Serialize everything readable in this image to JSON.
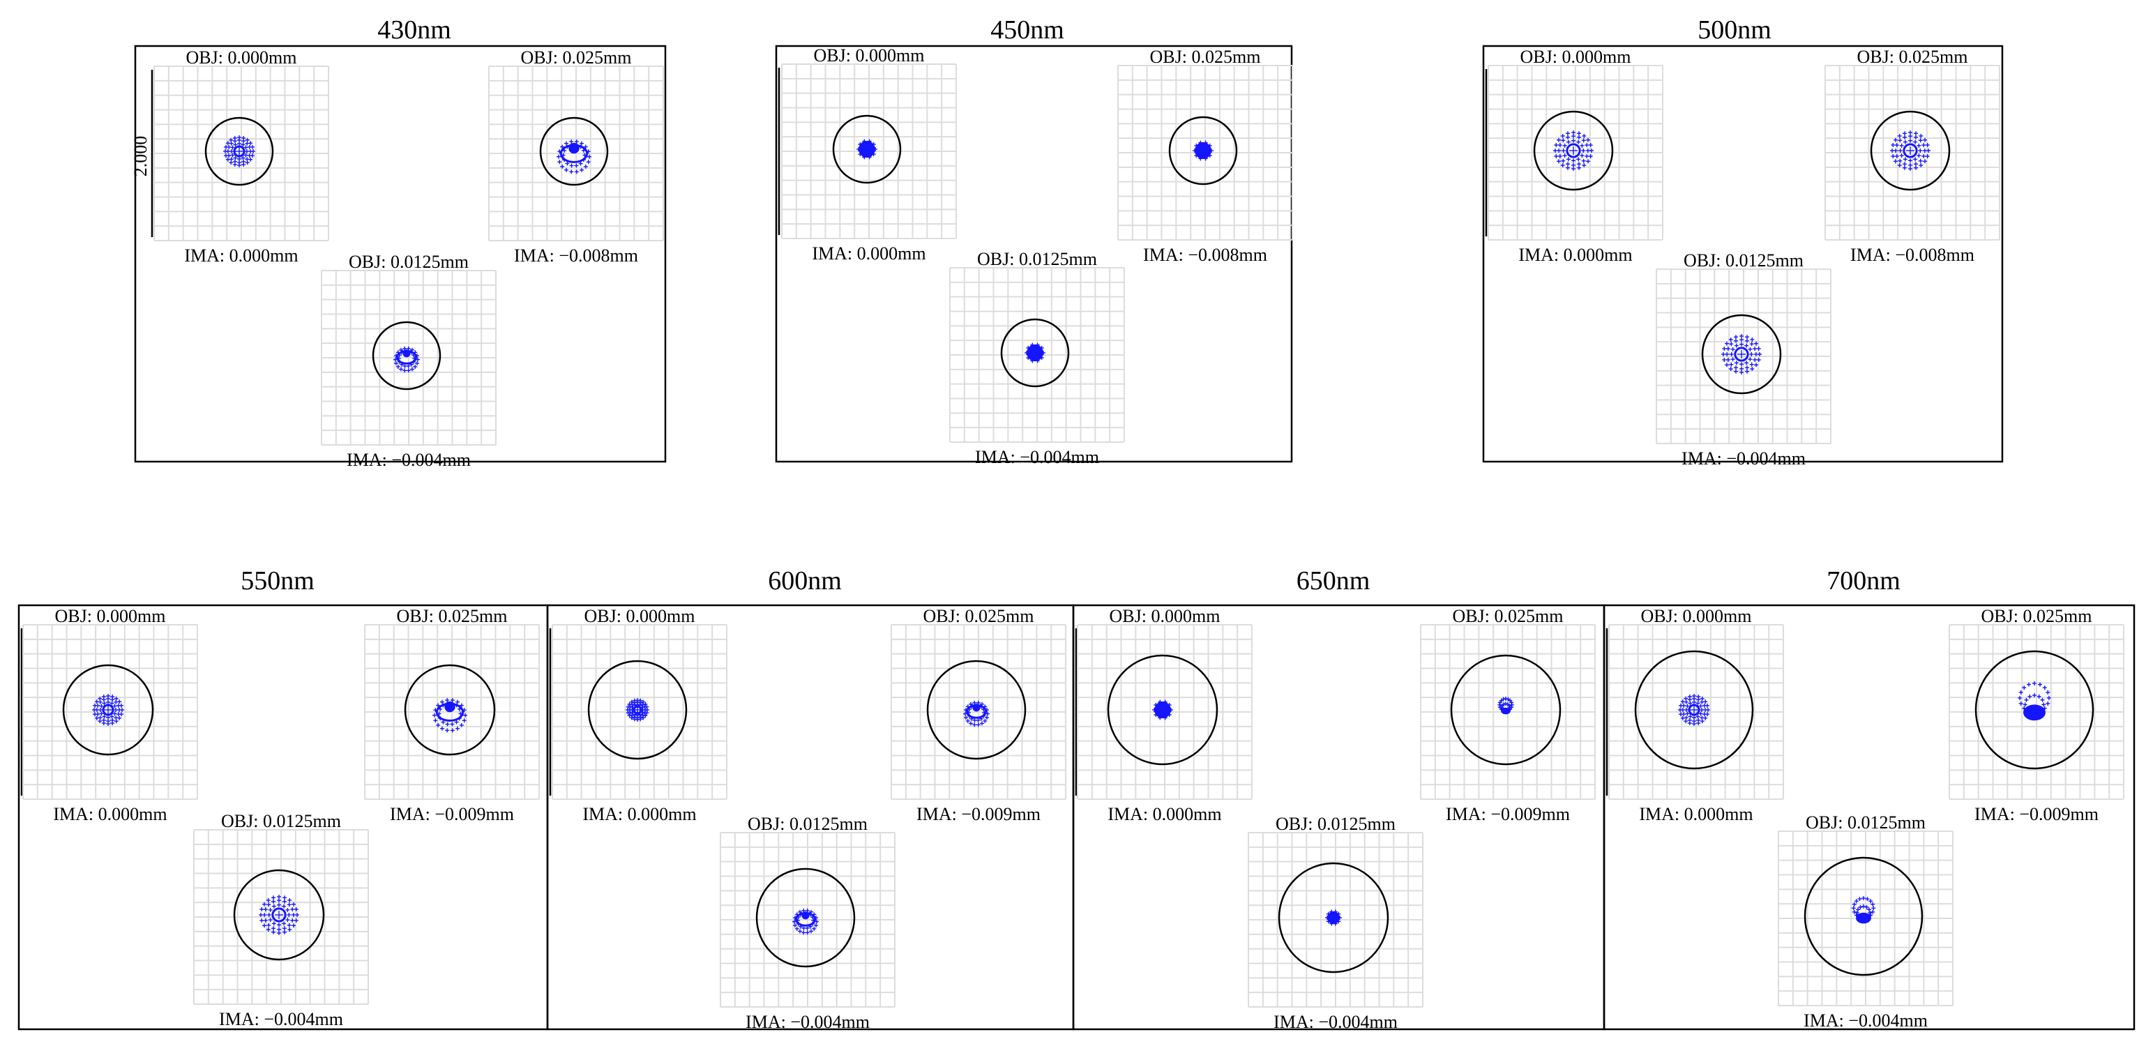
{
  "colors": {
    "spot": "#1515ff",
    "grid": "#dcdcdc",
    "frame": "#000000",
    "airy_circle": "#000000"
  },
  "scale_bar_label": "2.000",
  "panels": [
    {
      "title": "430nm",
      "fields": [
        {
          "obj": "OBJ: 0.000mm",
          "ima": "IMA: 0.000mm",
          "spot": "round-medium"
        },
        {
          "obj": "OBJ: 0.025mm",
          "ima": "IMA: −0.008mm",
          "spot": "coma-down-medium"
        },
        {
          "obj": "OBJ: 0.0125mm",
          "ima": "IMA: −0.004mm",
          "spot": "coma-down-small"
        }
      ]
    },
    {
      "title": "450nm",
      "fields": [
        {
          "obj": "OBJ: 0.000mm",
          "ima": "IMA: 0.000mm",
          "spot": "dot-small"
        },
        {
          "obj": "OBJ: 0.025mm",
          "ima": "IMA: −0.008mm",
          "spot": "dot-small"
        },
        {
          "obj": "OBJ: 0.0125mm",
          "ima": "IMA: −0.004mm",
          "spot": "dot-small"
        }
      ]
    },
    {
      "title": "500nm",
      "fields": [
        {
          "obj": "OBJ: 0.000mm",
          "ima": "IMA: 0.000mm",
          "spot": "round-large"
        },
        {
          "obj": "OBJ: 0.025mm",
          "ima": "IMA: −0.008mm",
          "spot": "round-large"
        },
        {
          "obj": "OBJ: 0.0125mm",
          "ima": "IMA: −0.004mm",
          "spot": "round-large"
        }
      ]
    },
    {
      "title": "550nm",
      "fields": [
        {
          "obj": "OBJ: 0.000mm",
          "ima": "IMA: 0.000mm",
          "spot": "round-medium"
        },
        {
          "obj": "OBJ: 0.025mm",
          "ima": "IMA: −0.009mm",
          "spot": "coma-down-medium"
        },
        {
          "obj": "OBJ: 0.0125mm",
          "ima": "IMA: −0.004mm",
          "spot": "round-large"
        }
      ]
    },
    {
      "title": "600nm",
      "fields": [
        {
          "obj": "OBJ: 0.000mm",
          "ima": "IMA: 0.000mm",
          "spot": "round-small"
        },
        {
          "obj": "OBJ: 0.025mm",
          "ima": "IMA: −0.009mm",
          "spot": "coma-down-small"
        },
        {
          "obj": "OBJ: 0.0125mm",
          "ima": "IMA: −0.004mm",
          "spot": "coma-down-small"
        }
      ]
    },
    {
      "title": "650nm",
      "fields": [
        {
          "obj": "OBJ: 0.000mm",
          "ima": "IMA: 0.000mm",
          "spot": "dot-small"
        },
        {
          "obj": "OBJ: 0.025mm",
          "ima": "IMA: −0.009mm",
          "spot": "coma-up-small"
        },
        {
          "obj": "OBJ: 0.0125mm",
          "ima": "IMA: −0.004mm",
          "spot": "dot-tiny"
        }
      ]
    },
    {
      "title": "700nm",
      "fields": [
        {
          "obj": "OBJ: 0.000mm",
          "ima": "IMA: 0.000mm",
          "spot": "round-medium"
        },
        {
          "obj": "OBJ: 0.025mm",
          "ima": "IMA: −0.009mm",
          "spot": "coma-up-large"
        },
        {
          "obj": "OBJ: 0.0125mm",
          "ima": "IMA: −0.004mm",
          "spot": "coma-up-medium"
        }
      ]
    }
  ]
}
